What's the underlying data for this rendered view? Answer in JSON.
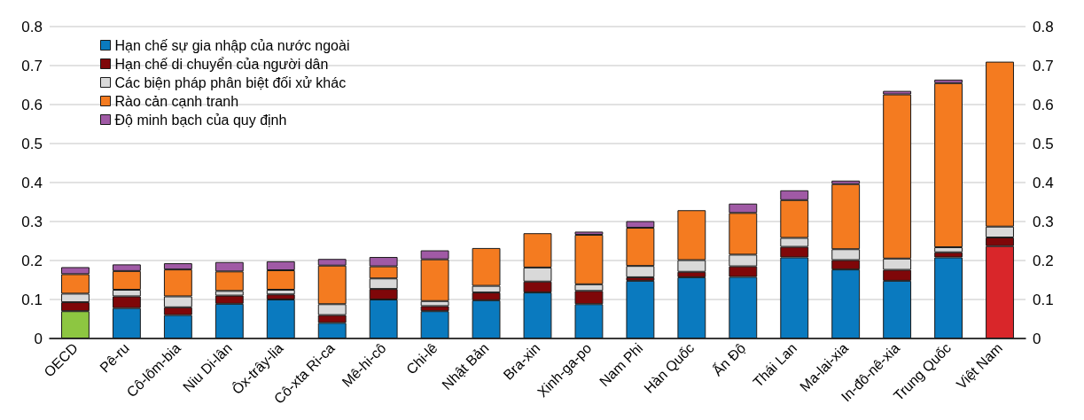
{
  "chart_data": {
    "type": "bar",
    "stacked": true,
    "categories": [
      "OECD",
      "Pê-ru",
      "Cô-lôm-bia",
      "Niu Di-lân",
      "Ôx-trây-lia",
      "Cô-xta Ri-ca",
      "Mê-hi-cô",
      "Chi-lê",
      "Nhật Bản",
      "Bra-xin",
      "Xinh-ga-po",
      "Nam Phi",
      "Hàn Quốc",
      "Ấn Độ",
      "Thái Lan",
      "Ma-lai-xia",
      "In-đô-nê-xia",
      "Trung Quốc",
      "Việt Nam"
    ],
    "series": [
      {
        "name": "Hạn chế sự gia nhập của nước ngoài",
        "color": "#0a7abf",
        "colors": [
          "#8dc641",
          "#0a7abf",
          "#0a7abf",
          "#0a7abf",
          "#0a7abf",
          "#0a7abf",
          "#0a7abf",
          "#0a7abf",
          "#0a7abf",
          "#0a7abf",
          "#0a7abf",
          "#0a7abf",
          "#0a7abf",
          "#0a7abf",
          "#0a7abf",
          "#0a7abf",
          "#0a7abf",
          "#0a7abf",
          "#d9262a"
        ],
        "values": [
          0.07,
          0.078,
          0.06,
          0.089,
          0.1,
          0.04,
          0.1,
          0.07,
          0.098,
          0.118,
          0.088,
          0.148,
          0.157,
          0.158,
          0.208,
          0.177,
          0.148,
          0.208,
          0.237
        ]
      },
      {
        "name": "Hạn chế di chuyển của người dân",
        "color": "#7f0709",
        "values": [
          0.023,
          0.03,
          0.02,
          0.021,
          0.013,
          0.02,
          0.027,
          0.013,
          0.02,
          0.028,
          0.034,
          0.009,
          0.014,
          0.027,
          0.027,
          0.024,
          0.028,
          0.013,
          0.022
        ]
      },
      {
        "name": "Các biện pháp phân biệt đối xử khác",
        "color": "#d9d9d9",
        "values": [
          0.022,
          0.017,
          0.028,
          0.012,
          0.012,
          0.028,
          0.027,
          0.013,
          0.017,
          0.036,
          0.017,
          0.029,
          0.03,
          0.03,
          0.023,
          0.028,
          0.029,
          0.013,
          0.028
        ]
      },
      {
        "name": "Rào cản cạnh tranh",
        "color": "#f47b20",
        "values": [
          0.05,
          0.048,
          0.069,
          0.05,
          0.05,
          0.099,
          0.031,
          0.107,
          0.097,
          0.088,
          0.127,
          0.098,
          0.128,
          0.107,
          0.097,
          0.167,
          0.421,
          0.421,
          0.423
        ]
      },
      {
        "name": "Độ minh bạch của quy định",
        "color": "#a05aa5",
        "values": [
          0.018,
          0.017,
          0.016,
          0.024,
          0.023,
          0.017,
          0.024,
          0.023,
          0,
          0,
          0.008,
          0.017,
          0,
          0.024,
          0.025,
          0.009,
          0.009,
          0.009,
          0
        ]
      }
    ],
    "ylim": [
      0,
      0.8
    ],
    "yticks": [
      0,
      0.1,
      0.2,
      0.3,
      0.4,
      0.5,
      0.6,
      0.7,
      0.8
    ],
    "y2lim": [
      0,
      0.8
    ],
    "y2ticks": [
      0,
      0.1,
      0.2,
      0.3,
      0.4,
      0.5,
      0.6,
      0.7,
      0.8
    ],
    "grid": "y",
    "legend": "top left"
  }
}
